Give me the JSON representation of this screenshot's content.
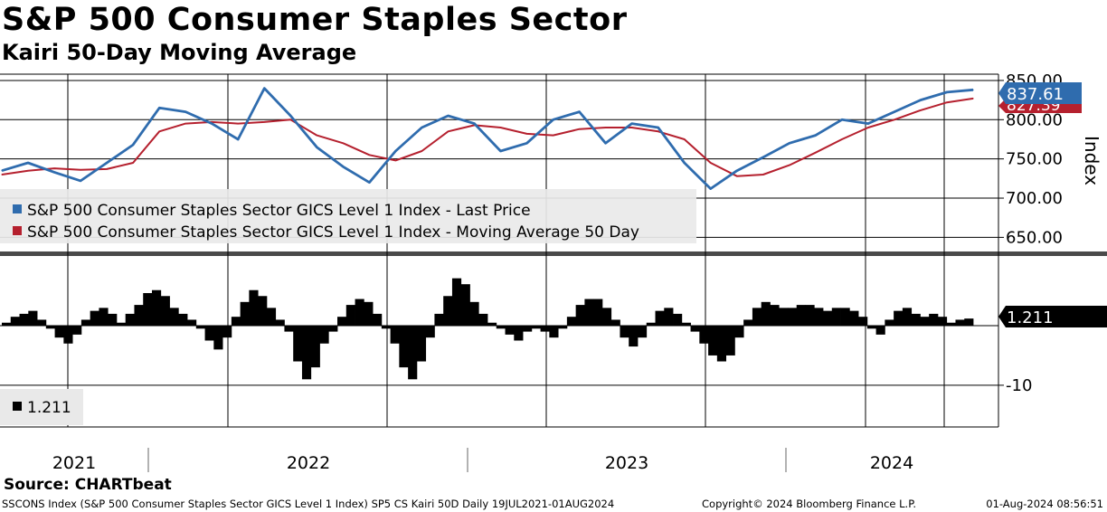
{
  "header": {
    "title": "S&P 500 Consumer Staples Sector",
    "subtitle": "Kairi 50-Day Moving Average"
  },
  "colors": {
    "price": "#2f6cae",
    "moving_average": "#b5202e",
    "kairi": "#000000"
  },
  "chart_data": [
    {
      "type": "line",
      "panel": "top",
      "ylabel": "Index",
      "ylim": [
        632,
        858
      ],
      "yticks": [
        650,
        700,
        750,
        800,
        850
      ],
      "ytick_labels": [
        "650.00",
        "700.00",
        "750.00",
        "800.00",
        "850.00"
      ],
      "x": [
        "2021-07",
        "2021-08",
        "2021-09",
        "2021-10",
        "2021-11",
        "2021-12",
        "2022-01",
        "2022-02",
        "2022-03",
        "2022-04",
        "2022-05",
        "2022-06",
        "2022-07",
        "2022-08",
        "2022-09",
        "2022-10",
        "2022-11",
        "2022-12",
        "2023-01",
        "2023-02",
        "2023-03",
        "2023-04",
        "2023-05",
        "2023-06",
        "2023-07",
        "2023-08",
        "2023-09",
        "2023-10",
        "2023-11",
        "2023-12",
        "2024-01",
        "2024-02",
        "2024-03",
        "2024-04",
        "2024-05",
        "2024-06",
        "2024-07",
        "2024-08"
      ],
      "series": [
        {
          "name": "S&P 500 Consumer Staples Sector GICS Level 1 Index - Last Price",
          "last_label": "837.61",
          "values": [
            735,
            745,
            733,
            722,
            745,
            768,
            815,
            810,
            795,
            775,
            840,
            805,
            765,
            740,
            720,
            760,
            790,
            805,
            795,
            760,
            770,
            800,
            810,
            770,
            795,
            790,
            745,
            712,
            735,
            752,
            770,
            780,
            800,
            795,
            810,
            825,
            835,
            838
          ]
        },
        {
          "name": "S&P 500 Consumer Staples Sector GICS Level 1 Index - Moving Average 50 Day",
          "last_label": "827.39",
          "values": [
            730,
            735,
            738,
            736,
            737,
            745,
            785,
            795,
            797,
            795,
            797,
            800,
            780,
            770,
            755,
            748,
            760,
            785,
            793,
            790,
            782,
            780,
            788,
            790,
            790,
            785,
            775,
            745,
            728,
            730,
            742,
            758,
            775,
            790,
            800,
            812,
            822,
            827
          ]
        }
      ]
    },
    {
      "type": "bar",
      "panel": "bottom",
      "series_name": "SP5 CS Kairi 50D",
      "last_label": "1.211",
      "yticks": [
        -10
      ],
      "ytick_labels": [
        "-10"
      ],
      "ylim": [
        -17,
        11
      ],
      "values": [
        0.5,
        1.5,
        2,
        2.5,
        1,
        -0.5,
        -2,
        -3,
        -1.5,
        1,
        2.5,
        3,
        2,
        0.5,
        2,
        3.5,
        5.5,
        6,
        5,
        3,
        2,
        1,
        -0.5,
        -2.5,
        -4,
        -2,
        1.5,
        4,
        6,
        5,
        3,
        1,
        -1,
        -6,
        -9,
        -7,
        -3,
        -1,
        1.5,
        3.5,
        4.5,
        4,
        2,
        -0.5,
        -3,
        -7,
        -9,
        -6,
        -2,
        2,
        5,
        8,
        7,
        4,
        2,
        0.5,
        -0.5,
        -1.5,
        -2.5,
        -1,
        -0.5,
        -1,
        -2,
        -0.5,
        1.5,
        3.5,
        4.5,
        4.5,
        3,
        1,
        -2,
        -3.5,
        -2,
        0.5,
        2.5,
        3,
        2,
        0.5,
        -1,
        -3,
        -5,
        -6,
        -5,
        -2,
        1,
        3,
        4,
        3.5,
        3,
        3,
        3.5,
        3.5,
        3,
        2.5,
        3,
        3,
        2.5,
        1.5,
        -0.5,
        -1.5,
        1,
        2.5,
        3,
        2,
        1.5,
        2,
        1.5,
        0.5,
        1,
        1.2
      ]
    }
  ],
  "legend": {
    "items": [
      "S&P 500 Consumer Staples Sector GICS Level 1 Index - Last Price",
      "S&P 500 Consumer Staples Sector GICS Level 1 Index - Moving Average 50 Day"
    ],
    "kairi_item": "1.211"
  },
  "x_axis": {
    "year_labels": [
      "2021",
      "2022",
      "2023",
      "2024"
    ]
  },
  "source": "Source: CHARTbeat",
  "footer": {
    "left": "SSCONS Index (S&P 500 Consumer Staples Sector GICS Level 1 Index) SP5 CS Kairi 50D  Daily 19JUL2021-01AUG2024",
    "middle": "Copyright© 2024 Bloomberg Finance L.P.",
    "right": "01-Aug-2024 08:56:51"
  }
}
